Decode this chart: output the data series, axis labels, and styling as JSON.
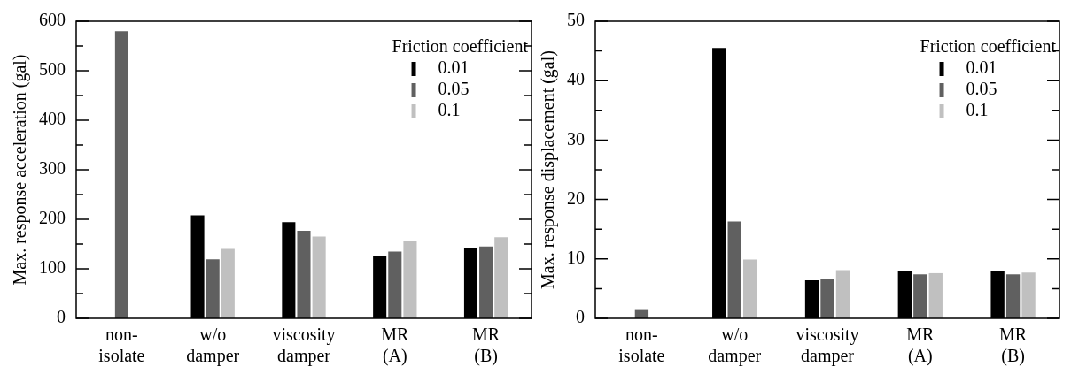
{
  "chart_data": [
    {
      "type": "bar",
      "ylabel": "Max. response acceleration (gal)",
      "legend_title": "Friction coefficient",
      "legend": "top right",
      "grid": false,
      "categories": [
        "non-isolate",
        "w/o damper",
        "viscosity damper",
        "MR (A)",
        "MR (B)"
      ],
      "ylim": [
        0,
        600
      ],
      "yticks": [
        0,
        {
          "value": 50,
          "label": null
        },
        100,
        {
          "value": 150,
          "label": null
        },
        200,
        {
          "value": 250,
          "label": null
        },
        300,
        {
          "value": 350,
          "label": null
        },
        400,
        {
          "value": 450,
          "label": null
        },
        500,
        {
          "value": 550,
          "label": null
        },
        600
      ],
      "series": [
        {
          "name": "0.01",
          "color": "#000000",
          "values": [
            null,
            208,
            194,
            125,
            143
          ]
        },
        {
          "name": "0.05",
          "color": "#606060",
          "values": [
            580,
            119,
            177,
            135,
            145
          ]
        },
        {
          "name": "0.1",
          "color": "#c0c0c0",
          "values": [
            null,
            140,
            165,
            157,
            164
          ]
        }
      ]
    },
    {
      "type": "bar",
      "ylabel": "Max. response displacement (gal)",
      "legend_title": "Friction coefficient",
      "legend": "top right",
      "grid": false,
      "categories": [
        "non-isolate",
        "w/o damper",
        "viscosity damper",
        "MR (A)",
        "MR (B)"
      ],
      "ylim": [
        0,
        50
      ],
      "yticks": [
        0,
        {
          "value": 5,
          "label": null
        },
        10,
        {
          "value": 15,
          "label": null
        },
        20,
        {
          "value": 25,
          "label": null
        },
        30,
        {
          "value": 35,
          "label": null
        },
        40,
        {
          "value": 45,
          "label": null
        },
        50
      ],
      "series": [
        {
          "name": "0.01",
          "color": "#000000",
          "values": [
            null,
            45.5,
            6.4,
            7.9,
            7.9
          ]
        },
        {
          "name": "0.05",
          "color": "#606060",
          "values": [
            1.4,
            16.3,
            6.6,
            7.4,
            7.4
          ]
        },
        {
          "name": "0.1",
          "color": "#c0c0c0",
          "values": [
            null,
            9.9,
            8.1,
            7.6,
            7.7
          ]
        }
      ]
    }
  ]
}
